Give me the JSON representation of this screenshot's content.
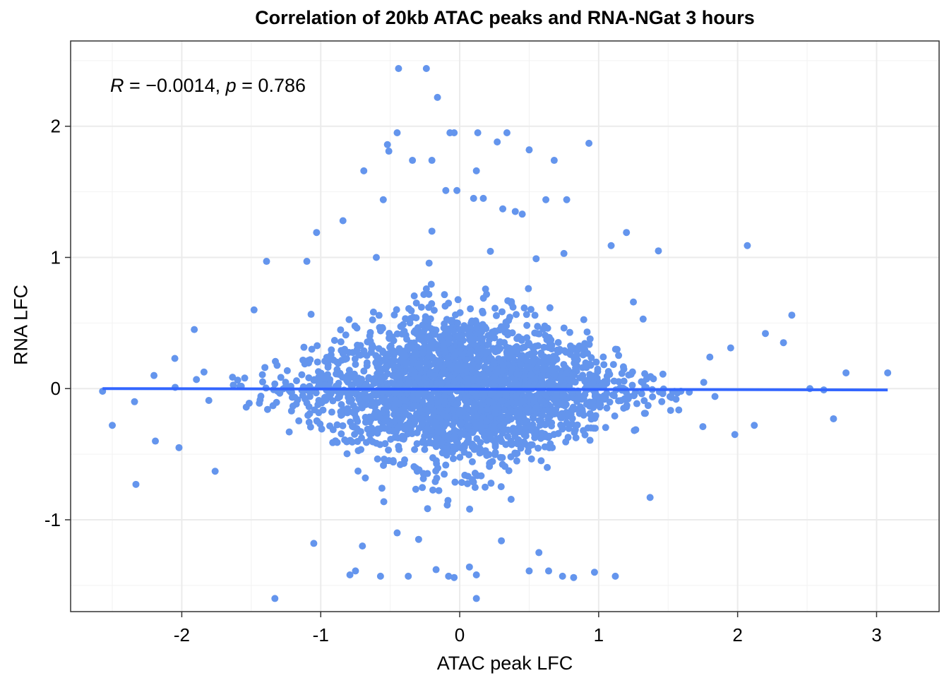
{
  "chart_data": {
    "type": "scatter",
    "title": "Correlation of 20kb ATAC peaks and RNA-NGat 3 hours",
    "xlabel": "ATAC peak LFC",
    "ylabel": "RNA LFC",
    "xlim": [
      -2.8,
      3.45
    ],
    "ylim": [
      -1.7,
      2.65
    ],
    "xticks": [
      -2,
      -1,
      0,
      1,
      2,
      3
    ],
    "yticks": [
      -1,
      0,
      1,
      2
    ],
    "grid": true,
    "point_color": "#6495ED",
    "fit_line_color": "#3366FF",
    "annotation": {
      "r_symbol": "R",
      "r_text": " = −0.0014, ",
      "p_symbol": "p",
      "p_text": " = 0.786"
    },
    "fit_line": {
      "x": [
        -2.57,
        3.08
      ],
      "y": [
        0.0,
        -0.01
      ]
    },
    "outliers": [
      [
        -0.44,
        2.44
      ],
      [
        -0.24,
        2.44
      ],
      [
        -0.16,
        2.22
      ],
      [
        -0.45,
        1.95
      ],
      [
        -0.52,
        1.86
      ],
      [
        -0.51,
        1.81
      ],
      [
        -0.2,
        1.74
      ],
      [
        -0.34,
        1.74
      ],
      [
        -0.07,
        1.95
      ],
      [
        -0.04,
        1.95
      ],
      [
        0.13,
        1.95
      ],
      [
        0.27,
        1.88
      ],
      [
        0.34,
        1.95
      ],
      [
        0.5,
        1.82
      ],
      [
        0.68,
        1.74
      ],
      [
        0.93,
        1.87
      ],
      [
        0.12,
        1.66
      ],
      [
        -0.69,
        1.66
      ],
      [
        -0.55,
        1.44
      ],
      [
        0.62,
        1.44
      ],
      [
        0.77,
        1.44
      ],
      [
        0.1,
        1.45
      ],
      [
        0.17,
        1.45
      ],
      [
        -0.1,
        1.51
      ],
      [
        -0.02,
        1.51
      ],
      [
        0.4,
        1.35
      ],
      [
        0.45,
        1.33
      ],
      [
        -0.84,
        1.28
      ],
      [
        0.31,
        1.37
      ],
      [
        -1.03,
        1.19
      ],
      [
        1.2,
        1.19
      ],
      [
        2.07,
        1.09
      ],
      [
        -1.39,
        0.97
      ],
      [
        -0.2,
        1.2
      ],
      [
        1.43,
        1.05
      ],
      [
        1.09,
        1.09
      ],
      [
        2.39,
        0.56
      ],
      [
        -1.48,
        0.6
      ],
      [
        -1.91,
        0.45
      ],
      [
        -2.05,
        0.23
      ],
      [
        -2.2,
        0.1
      ],
      [
        -2.57,
        -0.02
      ],
      [
        -2.34,
        -0.1
      ],
      [
        -2.5,
        -0.28
      ],
      [
        -2.19,
        -0.4
      ],
      [
        -2.33,
        -0.73
      ],
      [
        -2.02,
        -0.45
      ],
      [
        -1.76,
        -0.63
      ],
      [
        -1.33,
        -1.6
      ],
      [
        -1.05,
        -1.18
      ],
      [
        -0.79,
        -1.42
      ],
      [
        -0.75,
        -1.39
      ],
      [
        -0.57,
        -1.43
      ],
      [
        -0.37,
        -1.43
      ],
      [
        -0.17,
        -1.38
      ],
      [
        -0.08,
        -1.43
      ],
      [
        -0.04,
        -1.44
      ],
      [
        0.12,
        -1.42
      ],
      [
        0.07,
        -1.36
      ],
      [
        0.12,
        -1.6
      ],
      [
        0.5,
        -1.39
      ],
      [
        0.64,
        -1.39
      ],
      [
        0.74,
        -1.43
      ],
      [
        0.82,
        -1.44
      ],
      [
        1.12,
        -1.43
      ],
      [
        0.97,
        -1.4
      ],
      [
        1.37,
        -0.83
      ],
      [
        2.69,
        -0.23
      ],
      [
        2.78,
        0.12
      ],
      [
        3.08,
        0.12
      ],
      [
        2.62,
        -0.01
      ],
      [
        2.52,
        0.0
      ],
      [
        2.33,
        0.35
      ],
      [
        2.2,
        0.42
      ],
      [
        2.12,
        -0.28
      ],
      [
        1.75,
        -0.29
      ],
      [
        1.98,
        -0.35
      ],
      [
        1.95,
        0.31
      ],
      [
        1.8,
        0.24
      ],
      [
        -0.7,
        -1.2
      ],
      [
        0.57,
        -1.25
      ],
      [
        0.3,
        -1.16
      ],
      [
        -0.45,
        -1.1
      ],
      [
        1.32,
        0.53
      ],
      [
        1.25,
        0.66
      ],
      [
        -1.1,
        0.97
      ],
      [
        -0.6,
        1.0
      ],
      [
        0.55,
        0.99
      ],
      [
        0.75,
        1.03
      ]
    ]
  }
}
